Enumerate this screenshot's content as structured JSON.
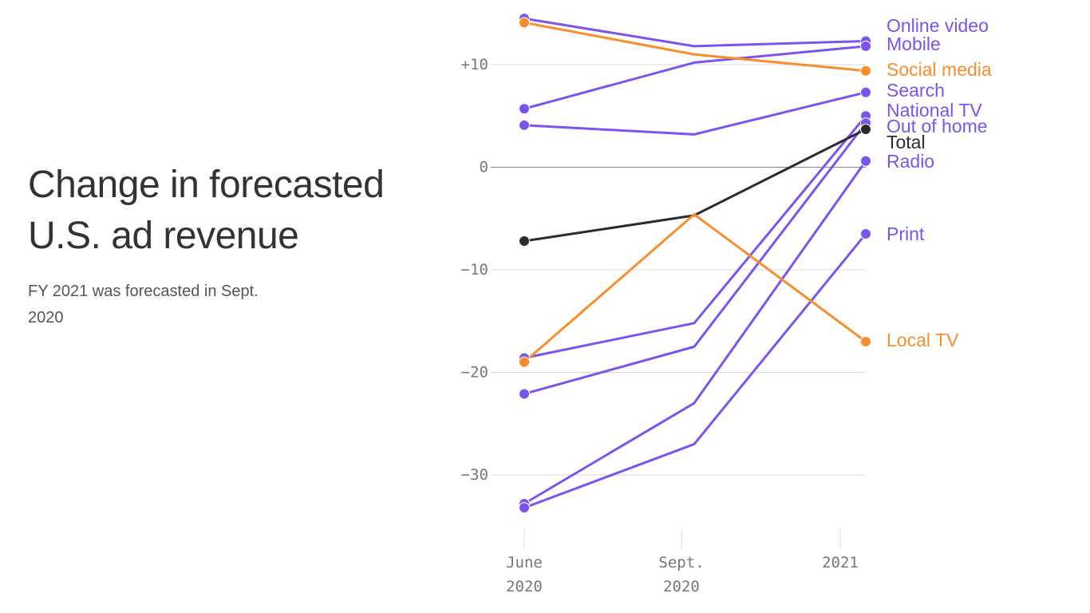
{
  "title": "Change in forecasted U.S. ad revenue",
  "subtitle": "FY 2021 was forecasted in Sept. 2020",
  "colors": {
    "purple": "#7b54f0",
    "orange": "#fb8c2c",
    "black": "#2b2b2b",
    "grid": "#d9d9d9",
    "zero": "#888888",
    "tick": "#777777"
  },
  "chart_data": {
    "type": "line",
    "title": "Change in forecasted U.S. ad revenue",
    "subtitle": "FY 2021 was forecasted in Sept. 2020",
    "categories": [
      [
        "June",
        "2020"
      ],
      [
        "Sept.",
        "2020"
      ],
      [
        "2021"
      ]
    ],
    "ylim": [
      -35,
      15
    ],
    "yticks": [
      {
        "value": 10,
        "label": "+10"
      },
      {
        "value": 0,
        "label": "0"
      },
      {
        "value": -10,
        "label": "−10"
      },
      {
        "value": -20,
        "label": "−20"
      },
      {
        "value": -30,
        "label": "−30"
      }
    ],
    "grid": true,
    "legend": "direct labels at right",
    "series": [
      {
        "name": "Online video",
        "color": "purple",
        "values": [
          14.5,
          11.8,
          12.3
        ]
      },
      {
        "name": "Mobile",
        "color": "purple",
        "values": [
          5.7,
          10.2,
          11.8
        ]
      },
      {
        "name": "Social media",
        "color": "orange",
        "values": [
          14.1,
          11.0,
          9.4
        ]
      },
      {
        "name": "Search",
        "color": "purple",
        "values": [
          4.1,
          3.2,
          7.3
        ]
      },
      {
        "name": "National TV",
        "color": "purple",
        "values": [
          -18.6,
          -15.2,
          5.0
        ]
      },
      {
        "name": "Out of home",
        "color": "purple",
        "values": [
          -22.1,
          -17.5,
          4.3
        ]
      },
      {
        "name": "Total",
        "color": "black",
        "values": [
          -7.2,
          -4.7,
          3.7
        ]
      },
      {
        "name": "Radio",
        "color": "purple",
        "values": [
          -32.8,
          -23.0,
          0.6
        ]
      },
      {
        "name": "Print",
        "color": "purple",
        "values": [
          -33.2,
          -27.0,
          -6.5
        ]
      },
      {
        "name": "Local TV",
        "color": "orange",
        "values": [
          -19.0,
          -4.6,
          -17.0
        ]
      }
    ]
  }
}
